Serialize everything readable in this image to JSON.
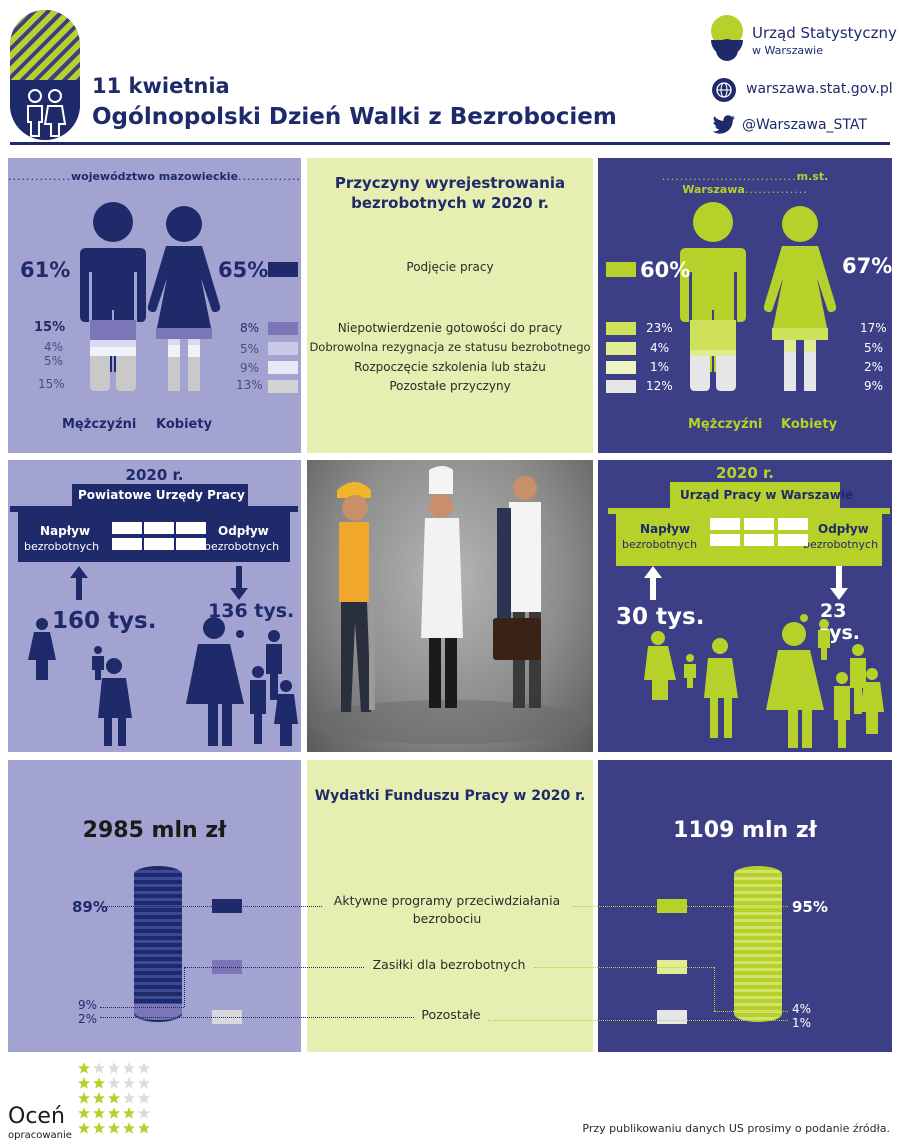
{
  "header": {
    "date": "11 kwietnia",
    "title": "Ogólnopolski Dzień Walki z Bezrobociem",
    "org_name": "Urząd Statystyczny",
    "org_sub": "w Warszawie",
    "website": "warszawa.stat.gov.pl",
    "twitter": "@Warszawa_STAT"
  },
  "colors": {
    "navy": "#1f2a6b",
    "lime": "#b6d22a",
    "lavender": "#a3a3d1",
    "cream": "#e7eeb2",
    "panel_navy": "#3c3f86"
  },
  "reasons": {
    "title_line1": "Przyczyny wyrejestrowania",
    "title_line2": "bezrobotnych w 2020 r.",
    "items": [
      "Podjęcie pracy",
      "Niepotwierdzenie gotowości do pracy",
      "Dobrowolna rezygnacja ze statusu bezrobotnego",
      "Rozpoczęcie szkolenia lub stażu",
      "Pozostałe przyczyny"
    ]
  },
  "mazowieckie": {
    "region": "województwo mazowieckie",
    "men_label": "Mężczyźni",
    "women_label": "Kobiety",
    "men": [
      "61%",
      "15%",
      "4%",
      "5%",
      "15%"
    ],
    "women": [
      "65%",
      "8%",
      "5%",
      "9%",
      "13%"
    ]
  },
  "warszawa": {
    "region": "m.st. Warszawa",
    "men_label": "Mężczyźni",
    "women_label": "Kobiety",
    "men": [
      "60%",
      "23%",
      "4%",
      "1%",
      "12%"
    ],
    "women": [
      "67%",
      "17%",
      "5%",
      "2%",
      "9%"
    ]
  },
  "flows_maz": {
    "year": "2020 r.",
    "office": "Powiatowe Urzędy Pracy",
    "inflow_label": "Napływ",
    "outflow_label": "Odpływ",
    "sub_label": "bezrobotnych",
    "inflow_value": "160 tys.",
    "outflow_value": "136 tys."
  },
  "flows_waw": {
    "year": "2020 r.",
    "office": "Urząd Pracy w Warszawie",
    "inflow_label": "Napływ",
    "outflow_label": "Odpływ",
    "sub_label": "bezrobotnych",
    "inflow_value": "30 tys.",
    "outflow_value": "23 tys."
  },
  "fund": {
    "title": "Wydatki Funduszu Pracy w 2020 r.",
    "maz_total": "2985 mln zł",
    "waw_total": "1109 mln zł",
    "items": [
      {
        "line1": "Aktywne programy przeciwdziałania",
        "line2": "bezrobociu",
        "maz": "89%",
        "waw": "95%"
      },
      {
        "line1": "Zasiłki dla bezrobotnych",
        "line2": "",
        "maz": "9%",
        "waw": "4%"
      },
      {
        "line1": "Pozostałe",
        "line2": "",
        "maz": "2%",
        "waw": "1%"
      }
    ]
  },
  "footer": {
    "rate_label": "Oceń",
    "rate_sub": "opracowanie",
    "note": "Przy publikowaniu danych US prosimy o podanie źródła."
  }
}
